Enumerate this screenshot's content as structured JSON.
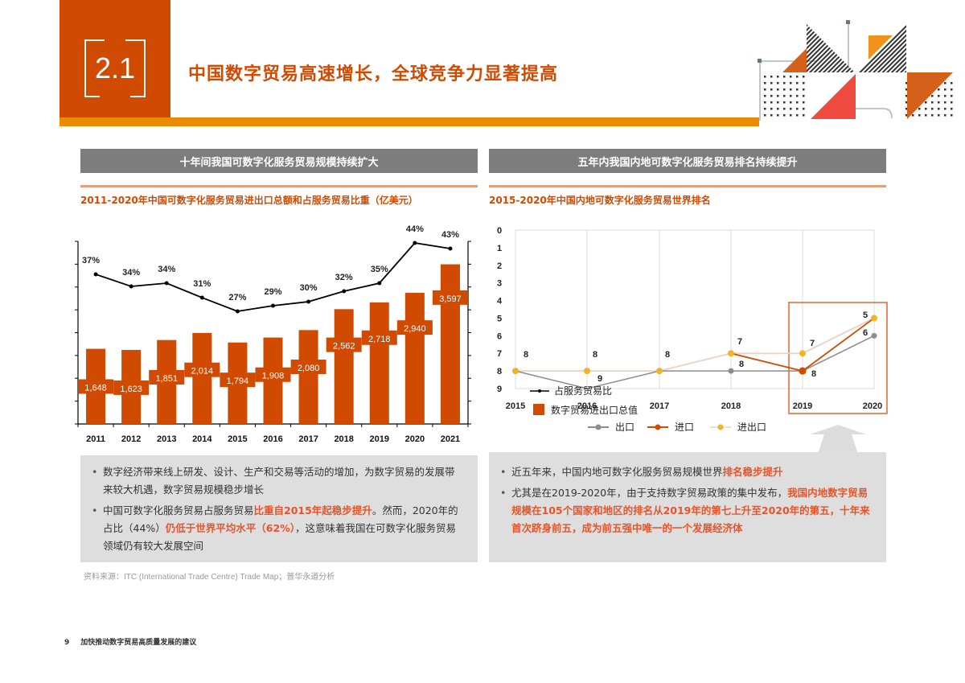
{
  "header": {
    "section_number": "2.1",
    "title": "中国数字贸易高速增长，全球竞争力显著提高",
    "colors": {
      "brand": "#d04a02",
      "accent": "#eb8c00"
    }
  },
  "left_panel": {
    "heading": "十年间我国可数字化服务贸易规模持续扩大",
    "subtitle_prefix": "2011-2020",
    "subtitle_rest": "年中国可数字化服务贸易进出口总额和占服务贸易比重（亿美元）",
    "notes": [
      {
        "plain": "数字经济带来线上研发、设计、生产和交易等活动的增加，为数字贸易的发展带来较大机遇，数字贸易规模稳步增长"
      },
      {
        "part1": "中国可数字化服务贸易占服务贸易",
        "hl1": "比重自2015年起稳步提升",
        "part2": "。然而，2020年的占比（44%）",
        "hl2": "仍低于世界平均水平（62%）",
        "part3": "，这意味着我国在可数字化服务贸易领域仍有较大发展空间"
      }
    ]
  },
  "right_panel": {
    "heading": "五年内我国内地可数字化服务贸易排名持续提升",
    "subtitle_prefix": "2015-2020",
    "subtitle_rest": "年中国内地可数字化服务贸易世界排名",
    "overlap_legend": {
      "line_label": "占服务贸易比",
      "bar_label": "数字贸易进出口总值"
    },
    "legend": {
      "export": "出口",
      "import": "进口",
      "total": "进出口"
    },
    "notes": [
      {
        "part1": "近五年来，中国内地可数字化服务贸易规模世界",
        "hl1": "排名稳步提升"
      },
      {
        "part1": "尤其是在2019-2020年，由于支持数字贸易政策的集中发布，",
        "hl1": "我国内地数字贸易规模在105个国家和地区的排名从2019年的第七上升至2020年的第五，十年来首次跻身前五，成为前五强中唯一的一个发展经济体"
      }
    ]
  },
  "source": "资料来源：ITC (International Trade Centre) Trade Map；普华永道分析",
  "footer": {
    "page": "9",
    "text": "加快推动数字贸易高质量发展的建议"
  },
  "chart_data": [
    {
      "type": "bar",
      "title": "2011-2020年中国可数字化服务贸易进出口总额和占服务贸易比重（亿美元）",
      "categories": [
        "2011",
        "2012",
        "2013",
        "2014",
        "2015",
        "2016",
        "2017",
        "2018",
        "2019",
        "2020",
        "2021"
      ],
      "series": [
        {
          "name": "数字贸易进出口总值",
          "type": "bar",
          "color": "#d04a02",
          "values": [
            1648,
            1623,
            1851,
            2014,
            1794,
            1908,
            2080,
            2562,
            2718,
            2940,
            3597
          ],
          "labels": [
            "1,648",
            "1,623",
            "1,851",
            "2,014",
            "1,794",
            "1,908",
            "2,080",
            "2,562",
            "2,718",
            "2,940",
            "3,597"
          ]
        },
        {
          "name": "占服务贸易比",
          "type": "line",
          "color": "#000000",
          "values": [
            37,
            34,
            34,
            31,
            27,
            29,
            30,
            32,
            35,
            44,
            43
          ],
          "labels": [
            "37%",
            "34%",
            "34%",
            "31%",
            "27%",
            "29%",
            "30%",
            "32%",
            "35%",
            "44%",
            "43%"
          ]
        }
      ],
      "xlabel": "",
      "ylabel": "",
      "ylim": [
        0,
        4500
      ],
      "grid": false
    },
    {
      "type": "line",
      "title": "2015-2020年中国内地可数字化服务贸易世界排名",
      "categories": [
        "2015",
        "2016",
        "2017",
        "2018",
        "2019",
        "2020"
      ],
      "series": [
        {
          "name": "出口",
          "color": "#8c8c8c",
          "values": [
            8,
            9,
            8,
            8,
            8,
            6
          ]
        },
        {
          "name": "进口",
          "color": "#d04a02",
          "values": [
            8,
            8,
            8,
            7,
            8,
            5
          ]
        },
        {
          "name": "进出口",
          "color": "#f0b429",
          "values": [
            8,
            8,
            8,
            7,
            7,
            5
          ]
        }
      ],
      "point_labels": {
        "2015": [
          "8"
        ],
        "2016": [
          "8",
          "9"
        ],
        "2017": [
          "8"
        ],
        "2018": [
          "7",
          "8"
        ],
        "2019": [
          "7",
          "8"
        ],
        "2020": [
          "5",
          "6"
        ]
      },
      "yticks": [
        0,
        1,
        2,
        3,
        4,
        5,
        6,
        7,
        8,
        9
      ],
      "ylim": [
        0,
        9
      ],
      "y_inverted": true,
      "grid": true,
      "legend_position": "bottom",
      "highlight": "2019-2020"
    }
  ]
}
